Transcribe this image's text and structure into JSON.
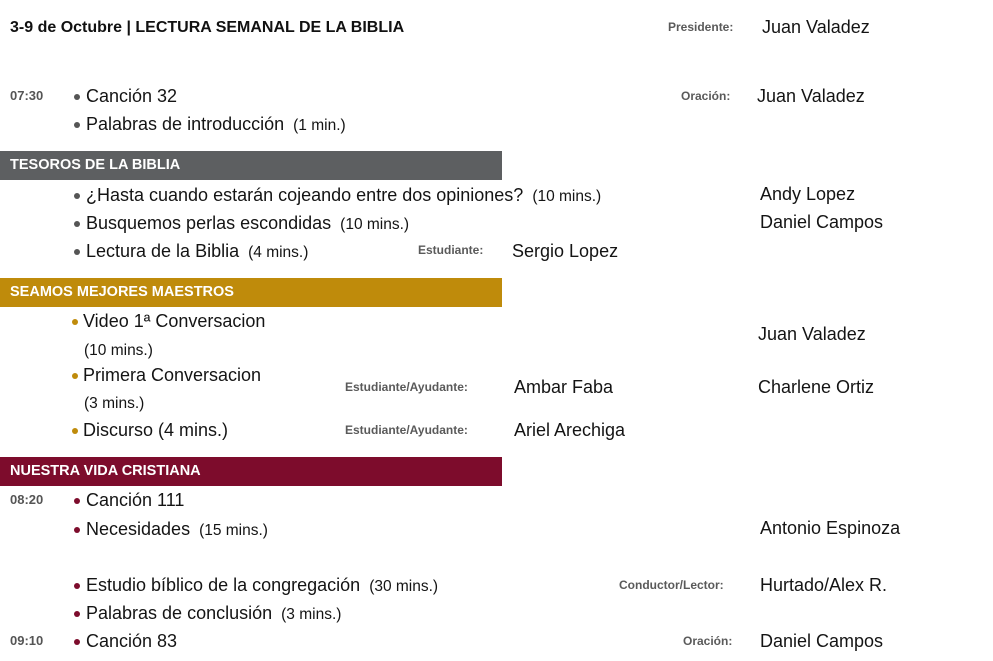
{
  "colors": {
    "treasures": "#5d5f61",
    "ministry": "#bf8b0b",
    "living": "#7d0c2c",
    "bullet_default": "#555555"
  },
  "header": {
    "title": "3-9 de Octubre | LECTURA SEMANAL DE LA BIBLIA",
    "president_label": "Presidente:",
    "president": "Juan Valadez"
  },
  "opening": {
    "time": "07:30",
    "song": "Canción 32",
    "prayer_label": "Oración:",
    "prayer": "Juan Valadez",
    "intro": "Palabras de introducción",
    "intro_duration": "(1 min.)"
  },
  "treasures": {
    "title": "TESOROS DE LA BIBLIA",
    "items": [
      {
        "text": "¿Hasta cuando estarán cojeando entre dos opiniones?",
        "duration": "(10 mins.)",
        "assignee": "Andy Lopez"
      },
      {
        "text": "Busquemos perlas escondidas",
        "duration": "(10 mins.)",
        "assignee": "Daniel Campos"
      },
      {
        "text": "Lectura de la Biblia",
        "duration": "(4 mins.)",
        "role_label": "Estudiante:",
        "student": "Sergio Lopez"
      }
    ]
  },
  "ministry": {
    "title": "SEAMOS MEJORES MAESTROS",
    "items": [
      {
        "text": "Video 1ª Conversacion",
        "duration": "(10 mins.)",
        "assignee": "Juan Valadez"
      },
      {
        "text": "Primera Conversacion",
        "duration": "(3 mins.)",
        "role_label": "Estudiante/Ayudante:",
        "student": "Ambar Faba",
        "assistant": "Charlene Ortiz"
      },
      {
        "text": "Discurso",
        "duration": "(4 mins.)",
        "role_label": "Estudiante/Ayudante:",
        "student": "Ariel Arechiga"
      }
    ]
  },
  "living": {
    "title": "NUESTRA VIDA CRISTIANA",
    "time": "08:20",
    "items": [
      {
        "text": "Canción 111"
      },
      {
        "text": "Necesidades",
        "duration": "(15 mins.)",
        "assignee": "Antonio Espinoza"
      },
      {
        "text": "Estudio bíblico de la congregación",
        "duration": "(30 mins.)",
        "role_label": "Conductor/Lector:",
        "assignee": "Hurtado/Alex R."
      },
      {
        "text": "Palabras de conclusión",
        "duration": "(3 mins.)"
      }
    ],
    "closing": {
      "time": "09:10",
      "song": "Canción 83",
      "prayer_label": "Oración:",
      "prayer": "Daniel Campos"
    }
  }
}
